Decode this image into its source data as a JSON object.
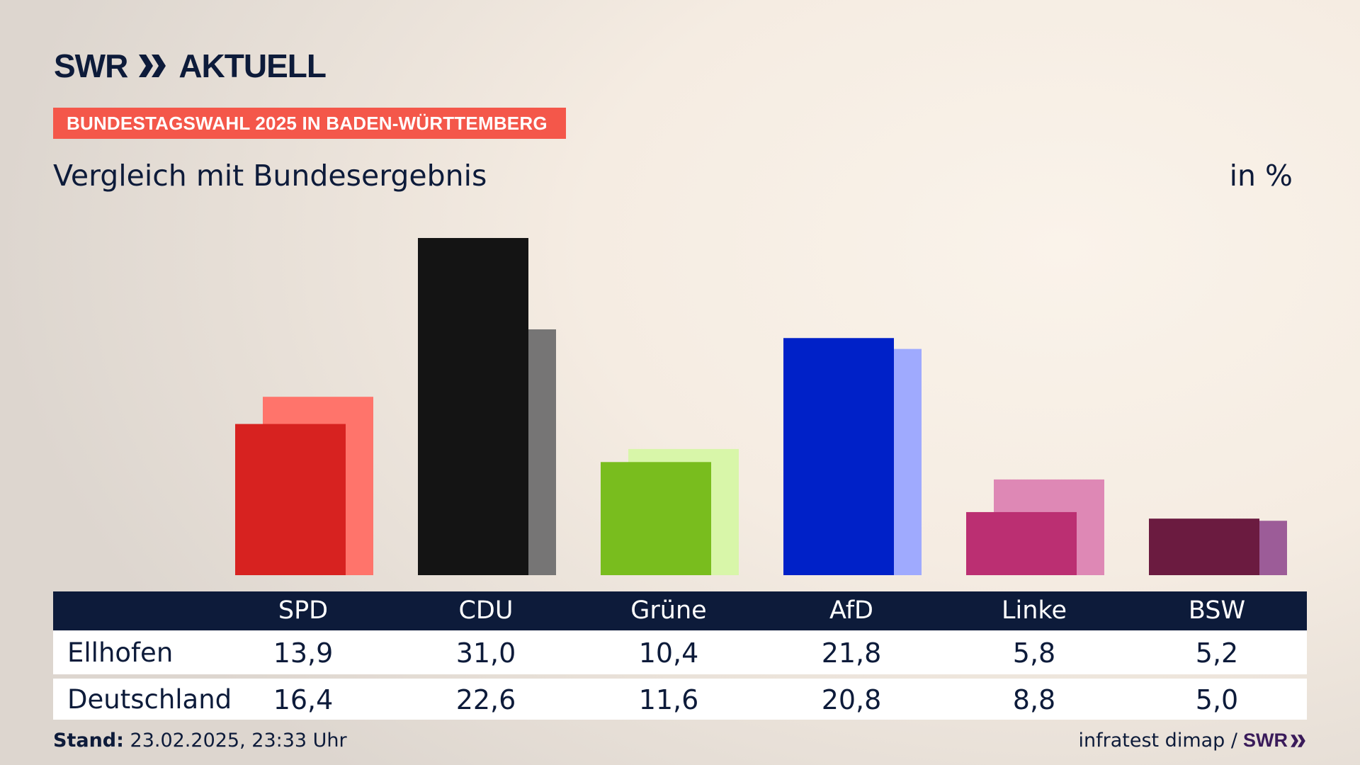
{
  "header": {
    "logo_text_1": "SWR",
    "logo_text_2": "AKTUELL",
    "banner": "BUNDESTAGSWAHL 2025 IN BADEN-WÜRTTEMBERG",
    "subtitle": "Vergleich mit Bundesergebnis",
    "unit": "in %"
  },
  "chart_data": {
    "type": "bar",
    "title": "Vergleich mit Bundesergebnis",
    "unit": "in %",
    "categories": [
      "SPD",
      "CDU",
      "Grüne",
      "AfD",
      "Linke",
      "BSW"
    ],
    "series": [
      {
        "name": "Ellhofen",
        "values": [
          13.9,
          31.0,
          10.4,
          21.8,
          5.8,
          5.2
        ],
        "colors": [
          "#d72220",
          "#141414",
          "#79bd1e",
          "#0021c8",
          "#bb2f72",
          "#6b1b40"
        ]
      },
      {
        "name": "Deutschland",
        "values": [
          16.4,
          22.6,
          11.6,
          20.8,
          8.8,
          5.0
        ],
        "colors": [
          "#ff746b",
          "#767575",
          "#d8f6a9",
          "#9faafe",
          "#de88b5",
          "#9c5c98"
        ]
      }
    ],
    "ylim": [
      0,
      31.0
    ],
    "grid": false,
    "legend": "table-below"
  },
  "table": {
    "rows": [
      {
        "label": "Ellhofen",
        "values": [
          "13,9",
          "31,0",
          "10,4",
          "21,8",
          "5,8",
          "5,2"
        ]
      },
      {
        "label": "Deutschland",
        "values": [
          "16,4",
          "22,6",
          "11,6",
          "20,8",
          "8,8",
          "5,0"
        ]
      }
    ]
  },
  "footer": {
    "stand_label": "Stand:",
    "stand_value": "23.02.2025, 23:33 Uhr",
    "source": "infratest dimap /",
    "source_logo": "SWR"
  },
  "colors": {
    "navy": "#0d1b3a",
    "banner": "#f4574a"
  }
}
